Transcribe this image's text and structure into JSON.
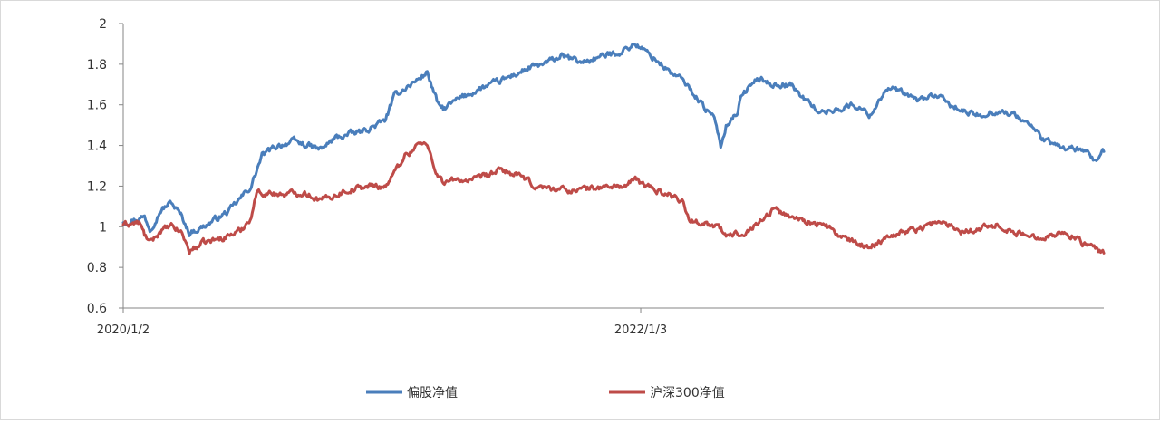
{
  "chart_data": {
    "type": "line",
    "title": "",
    "xlabel": "",
    "ylabel": "",
    "ylim": [
      0.6,
      2.0
    ],
    "yticks": [
      "0.6",
      "0.8",
      "1",
      "1.2",
      "1.4",
      "1.6",
      "1.8",
      "2"
    ],
    "xticks": [
      {
        "label": "2020/1/2",
        "index": 0
      },
      {
        "label": "2022/1/3",
        "index": 485
      }
    ],
    "grid": false,
    "legend_position": "bottom",
    "n_points": 920,
    "series": [
      {
        "name": "偏股净值",
        "color": "#4a7ebb",
        "x": [
          0,
          20,
          25,
          35,
          45,
          55,
          62,
          75,
          100,
          120,
          130,
          145,
          160,
          185,
          200,
          225,
          245,
          255,
          275,
          285,
          295,
          300,
          315,
          335,
          355,
          380,
          395,
          410,
          430,
          450,
          465,
          480,
          490,
          500,
          515,
          525,
          540,
          555,
          560,
          565,
          575,
          580,
          595,
          610,
          625,
          640,
          655,
          670,
          685,
          700,
          715,
          725,
          745,
          760,
          775,
          790,
          800,
          820,
          835,
          850,
          865,
          875,
          880,
          895,
          905,
          910,
          919
        ],
        "values": [
          1.02,
          1.05,
          0.99,
          1.08,
          1.12,
          1.05,
          0.97,
          1.0,
          1.08,
          1.2,
          1.35,
          1.4,
          1.42,
          1.38,
          1.44,
          1.47,
          1.52,
          1.65,
          1.72,
          1.76,
          1.6,
          1.58,
          1.63,
          1.68,
          1.72,
          1.78,
          1.8,
          1.84,
          1.81,
          1.84,
          1.86,
          1.9,
          1.86,
          1.82,
          1.75,
          1.72,
          1.62,
          1.52,
          1.4,
          1.5,
          1.56,
          1.65,
          1.73,
          1.7,
          1.7,
          1.62,
          1.56,
          1.58,
          1.6,
          1.55,
          1.68,
          1.67,
          1.62,
          1.65,
          1.6,
          1.56,
          1.55,
          1.57,
          1.55,
          1.5,
          1.42,
          1.4,
          1.39,
          1.38,
          1.35,
          1.32,
          1.37
        ]
      },
      {
        "name": "沪深300净值",
        "color": "#be4b48",
        "x": [
          0,
          15,
          20,
          25,
          35,
          45,
          55,
          62,
          75,
          90,
          110,
          120,
          125,
          150,
          170,
          185,
          200,
          210,
          230,
          245,
          250,
          265,
          270,
          275,
          285,
          295,
          300,
          315,
          330,
          355,
          370,
          375,
          385,
          400,
          420,
          440,
          460,
          470,
          480,
          495,
          515,
          525,
          530,
          545,
          560,
          565,
          585,
          600,
          610,
          620,
          640,
          660,
          670,
          680,
          700,
          715,
          725,
          745,
          760,
          775,
          785,
          800,
          820,
          835,
          850,
          870,
          885,
          905,
          915,
          919
        ],
        "values": [
          1.01,
          1.02,
          0.96,
          0.92,
          0.98,
          1.0,
          0.97,
          0.88,
          0.92,
          0.94,
          0.98,
          1.05,
          1.17,
          1.16,
          1.17,
          1.13,
          1.16,
          1.18,
          1.2,
          1.2,
          1.23,
          1.36,
          1.37,
          1.41,
          1.4,
          1.25,
          1.22,
          1.23,
          1.23,
          1.28,
          1.25,
          1.24,
          1.2,
          1.19,
          1.18,
          1.19,
          1.2,
          1.2,
          1.23,
          1.19,
          1.15,
          1.13,
          1.03,
          1.02,
          0.99,
          0.95,
          0.98,
          1.04,
          1.09,
          1.06,
          1.03,
          1.0,
          0.96,
          0.93,
          0.9,
          0.95,
          0.97,
          0.99,
          1.02,
          1.01,
          0.98,
          0.99,
          1.01,
          0.97,
          0.95,
          0.96,
          0.97,
          0.9,
          0.88,
          0.87
        ]
      }
    ]
  }
}
